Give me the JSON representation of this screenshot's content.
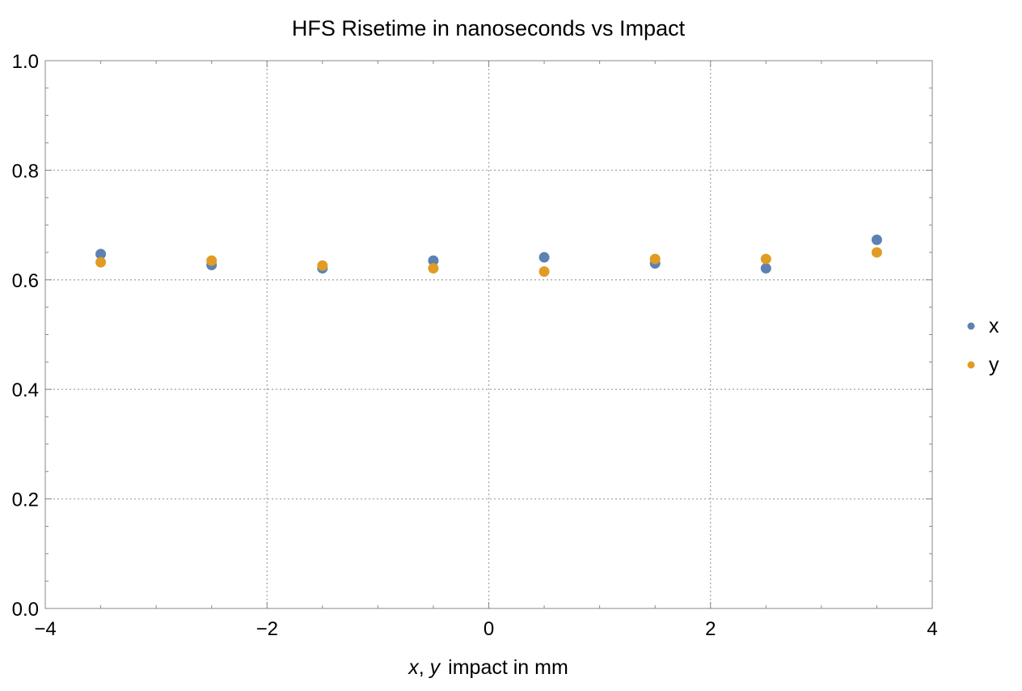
{
  "chart_data": {
    "type": "scatter",
    "title": "HFS Risetime in nanoseconds vs Impact",
    "xlabel": {
      "var1": "x",
      "sep": ",",
      "var2": "y",
      "rest": "impact in mm"
    },
    "ylabel": "",
    "xlim": [
      -4,
      4
    ],
    "ylim": [
      0,
      1
    ],
    "xticks": [
      -4,
      -2,
      0,
      2,
      4
    ],
    "yticks": [
      0.0,
      0.2,
      0.4,
      0.6,
      0.8,
      1.0
    ],
    "xtick_labels": [
      "−4",
      "−2",
      "0",
      "2",
      "4"
    ],
    "ytick_labels": [
      "0.0",
      "0.2",
      "0.4",
      "0.6",
      "0.8",
      "1.0"
    ],
    "grid": true,
    "legend_position": "right",
    "series": [
      {
        "name": "x",
        "color": "#5E81B5",
        "points": [
          {
            "x": -3.5,
            "y": 0.647
          },
          {
            "x": -2.5,
            "y": 0.627
          },
          {
            "x": -1.5,
            "y": 0.621
          },
          {
            "x": -0.5,
            "y": 0.635
          },
          {
            "x": 0.5,
            "y": 0.641
          },
          {
            "x": 1.5,
            "y": 0.63
          },
          {
            "x": 2.5,
            "y": 0.621
          },
          {
            "x": 3.5,
            "y": 0.673
          }
        ]
      },
      {
        "name": "y",
        "color": "#E19C24",
        "points": [
          {
            "x": -3.5,
            "y": 0.632
          },
          {
            "x": -2.5,
            "y": 0.635
          },
          {
            "x": -1.5,
            "y": 0.626
          },
          {
            "x": -0.5,
            "y": 0.621
          },
          {
            "x": 0.5,
            "y": 0.615
          },
          {
            "x": 1.5,
            "y": 0.638
          },
          {
            "x": 2.5,
            "y": 0.638
          },
          {
            "x": 3.5,
            "y": 0.65
          }
        ]
      }
    ]
  }
}
